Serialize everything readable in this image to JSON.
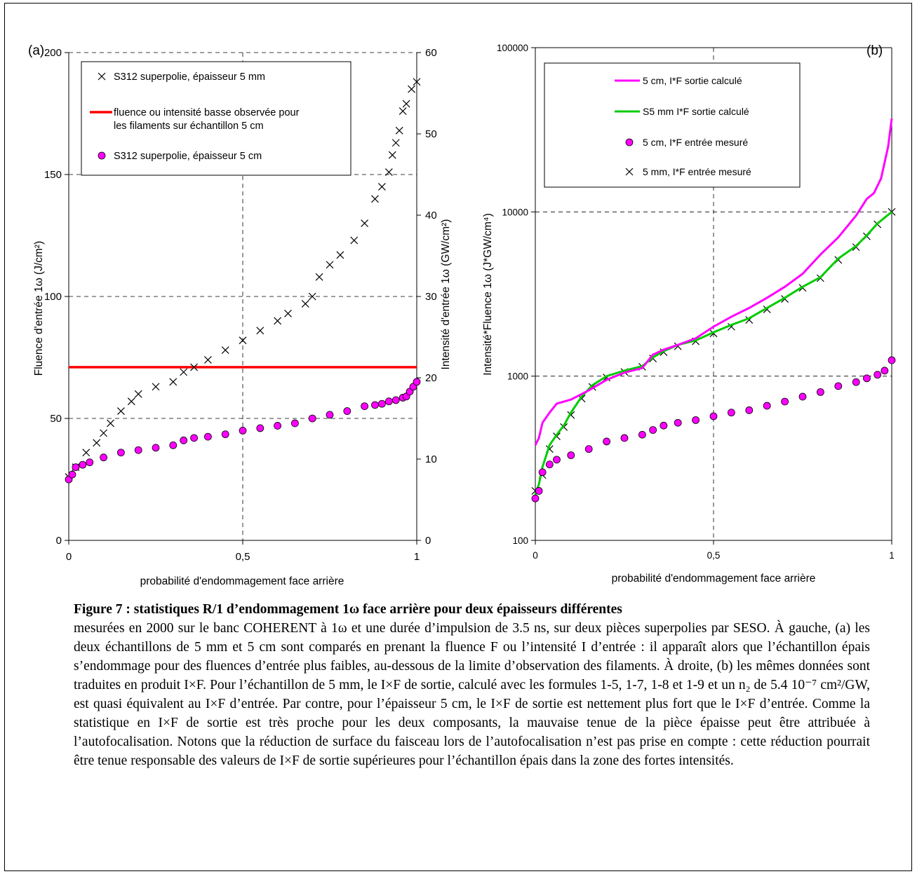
{
  "chart_data": [
    {
      "type": "scatter",
      "panel_label": "(a)",
      "xlabel": "probabilité d'endommagement face arrière",
      "ylabel": "Fluence d'entrée 1ω (J/cm²)",
      "y2label": "Intensité d'entrée 1ω (GW/cm²)",
      "xlim": [
        0,
        1
      ],
      "ylim": [
        0,
        200
      ],
      "y2lim": [
        0,
        60
      ],
      "x_ticks": [
        "0",
        "0,5",
        "1"
      ],
      "y_ticks": [
        "0",
        "50",
        "100",
        "150",
        "200"
      ],
      "y2_ticks": [
        "0",
        "10",
        "20",
        "30",
        "40",
        "50",
        "60"
      ],
      "grid": "dashed",
      "legend_position": "top-left",
      "series": [
        {
          "name": "S312 superpolie, épaisseur 5 mm",
          "marker": "x",
          "color": "#000000",
          "points": [
            [
              0,
              26
            ],
            [
              0.02,
              30
            ],
            [
              0.05,
              36
            ],
            [
              0.08,
              40
            ],
            [
              0.1,
              44
            ],
            [
              0.12,
              48
            ],
            [
              0.15,
              53
            ],
            [
              0.18,
              57
            ],
            [
              0.2,
              60
            ],
            [
              0.25,
              63
            ],
            [
              0.3,
              65
            ],
            [
              0.33,
              69
            ],
            [
              0.36,
              71
            ],
            [
              0.4,
              74
            ],
            [
              0.45,
              78
            ],
            [
              0.5,
              82
            ],
            [
              0.55,
              86
            ],
            [
              0.6,
              90
            ],
            [
              0.63,
              93
            ],
            [
              0.68,
              97
            ],
            [
              0.7,
              100
            ],
            [
              0.72,
              108
            ],
            [
              0.75,
              113
            ],
            [
              0.78,
              117
            ],
            [
              0.82,
              123
            ],
            [
              0.85,
              130
            ],
            [
              0.88,
              140
            ],
            [
              0.9,
              145
            ],
            [
              0.92,
              151
            ],
            [
              0.93,
              158
            ],
            [
              0.94,
              163
            ],
            [
              0.95,
              168
            ],
            [
              0.96,
              176
            ],
            [
              0.97,
              179
            ],
            [
              0.985,
              185
            ],
            [
              1,
              188
            ]
          ]
        },
        {
          "name": "fluence ou intensité basse observée pour les filaments sur échantillon 5 cm",
          "line": true,
          "color": "#ff0000",
          "points": [
            [
              0,
              71
            ],
            [
              1,
              71
            ]
          ]
        },
        {
          "name": "S312 superpolie, épaisseur 5 cm",
          "marker": "circle",
          "color": "#ff00ff",
          "points": [
            [
              0,
              25
            ],
            [
              0.01,
              27
            ],
            [
              0.02,
              30
            ],
            [
              0.04,
              31
            ],
            [
              0.06,
              32
            ],
            [
              0.1,
              34
            ],
            [
              0.15,
              36
            ],
            [
              0.2,
              37
            ],
            [
              0.25,
              38
            ],
            [
              0.3,
              39
            ],
            [
              0.33,
              41
            ],
            [
              0.36,
              42
            ],
            [
              0.4,
              42.5
            ],
            [
              0.45,
              43.5
            ],
            [
              0.5,
              45
            ],
            [
              0.55,
              46
            ],
            [
              0.6,
              47
            ],
            [
              0.65,
              48
            ],
            [
              0.7,
              50
            ],
            [
              0.75,
              51.5
            ],
            [
              0.8,
              53
            ],
            [
              0.85,
              55
            ],
            [
              0.88,
              55.5
            ],
            [
              0.9,
              56
            ],
            [
              0.92,
              57
            ],
            [
              0.94,
              57.5
            ],
            [
              0.96,
              58.5
            ],
            [
              0.97,
              59
            ],
            [
              0.98,
              61
            ],
            [
              0.99,
              63
            ],
            [
              1,
              65
            ]
          ]
        }
      ]
    },
    {
      "type": "line",
      "panel_label": "(b)",
      "xlabel": "probabilité d'endommagement face arrière",
      "ylabel": "Intensité*Fluence 1ω (J*GW/cm⁴)",
      "xlim": [
        0,
        1
      ],
      "ylim": [
        100,
        100000
      ],
      "y_scale": "log",
      "x_ticks": [
        "0",
        "0,5",
        "1"
      ],
      "y_ticks": [
        "100",
        "1000",
        "10000",
        "100000"
      ],
      "grid": "dashed",
      "legend_position": "top-left",
      "series": [
        {
          "name": "5 cm, I*F sortie calculé",
          "line": true,
          "color": "#ff00ff",
          "points": [
            [
              0,
              380
            ],
            [
              0.01,
              420
            ],
            [
              0.02,
              520
            ],
            [
              0.04,
              600
            ],
            [
              0.06,
              680
            ],
            [
              0.1,
              720
            ],
            [
              0.15,
              820
            ],
            [
              0.2,
              950
            ],
            [
              0.25,
              1050
            ],
            [
              0.3,
              1120
            ],
            [
              0.33,
              1350
            ],
            [
              0.36,
              1450
            ],
            [
              0.4,
              1550
            ],
            [
              0.45,
              1700
            ],
            [
              0.5,
              2000
            ],
            [
              0.55,
              2300
            ],
            [
              0.6,
              2600
            ],
            [
              0.65,
              3000
            ],
            [
              0.7,
              3500
            ],
            [
              0.75,
              4200
            ],
            [
              0.8,
              5500
            ],
            [
              0.85,
              7000
            ],
            [
              0.9,
              9500
            ],
            [
              0.93,
              12000
            ],
            [
              0.95,
              13000
            ],
            [
              0.97,
              16000
            ],
            [
              0.99,
              25000
            ],
            [
              1,
              37000
            ]
          ]
        },
        {
          "name": "S5 mm I*F sortie calculé",
          "line": true,
          "color": "#00cc00",
          "points": [
            [
              0,
              190
            ],
            [
              0.01,
              220
            ],
            [
              0.02,
              280
            ],
            [
              0.04,
              380
            ],
            [
              0.06,
              440
            ],
            [
              0.08,
              500
            ],
            [
              0.1,
              600
            ],
            [
              0.13,
              750
            ],
            [
              0.16,
              880
            ],
            [
              0.2,
              1000
            ],
            [
              0.25,
              1080
            ],
            [
              0.3,
              1150
            ],
            [
              0.33,
              1300
            ],
            [
              0.36,
              1420
            ],
            [
              0.4,
              1550
            ],
            [
              0.45,
              1650
            ],
            [
              0.5,
              1850
            ],
            [
              0.55,
              2050
            ],
            [
              0.6,
              2250
            ],
            [
              0.65,
              2600
            ],
            [
              0.7,
              3000
            ],
            [
              0.75,
              3500
            ],
            [
              0.8,
              4000
            ],
            [
              0.85,
              5200
            ],
            [
              0.9,
              6200
            ],
            [
              0.93,
              7200
            ],
            [
              0.96,
              8500
            ],
            [
              1,
              10000
            ]
          ]
        },
        {
          "name": "5 cm, I*F entrée mesuré",
          "marker": "circle",
          "color": "#ff00ff",
          "points": [
            [
              0,
              180
            ],
            [
              0.01,
              200
            ],
            [
              0.02,
              260
            ],
            [
              0.04,
              290
            ],
            [
              0.06,
              310
            ],
            [
              0.1,
              330
            ],
            [
              0.15,
              360
            ],
            [
              0.2,
              400
            ],
            [
              0.25,
              420
            ],
            [
              0.3,
              440
            ],
            [
              0.33,
              470
            ],
            [
              0.36,
              500
            ],
            [
              0.4,
              520
            ],
            [
              0.45,
              540
            ],
            [
              0.5,
              570
            ],
            [
              0.55,
              600
            ],
            [
              0.6,
              620
            ],
            [
              0.65,
              660
            ],
            [
              0.7,
              700
            ],
            [
              0.75,
              750
            ],
            [
              0.8,
              800
            ],
            [
              0.85,
              870
            ],
            [
              0.9,
              920
            ],
            [
              0.93,
              970
            ],
            [
              0.96,
              1020
            ],
            [
              0.98,
              1080
            ],
            [
              1,
              1250
            ]
          ]
        },
        {
          "name": "5 mm, I*F entrée mesuré",
          "marker": "x",
          "color": "#000000",
          "points": [
            [
              0,
              200
            ],
            [
              0.02,
              250
            ],
            [
              0.04,
              360
            ],
            [
              0.06,
              430
            ],
            [
              0.08,
              490
            ],
            [
              0.1,
              580
            ],
            [
              0.13,
              730
            ],
            [
              0.16,
              860
            ],
            [
              0.2,
              980
            ],
            [
              0.25,
              1060
            ],
            [
              0.3,
              1140
            ],
            [
              0.33,
              1280
            ],
            [
              0.36,
              1400
            ],
            [
              0.4,
              1520
            ],
            [
              0.45,
              1630
            ],
            [
              0.5,
              1820
            ],
            [
              0.55,
              2000
            ],
            [
              0.6,
              2200
            ],
            [
              0.65,
              2550
            ],
            [
              0.7,
              2950
            ],
            [
              0.75,
              3450
            ],
            [
              0.8,
              3950
            ],
            [
              0.85,
              5100
            ],
            [
              0.9,
              6100
            ],
            [
              0.93,
              7100
            ],
            [
              0.96,
              8400
            ],
            [
              1,
              10000
            ]
          ]
        }
      ]
    }
  ],
  "caption": {
    "title": "Figure 7 : statistiques R/1 d’endommagement 1ω face arrière pour deux épaisseurs différentes",
    "body": "mesurées en 2000 sur le banc COHERENT à 1ω et une durée d’impulsion de 3.5 ns, sur deux pièces superpolies par SESO. À gauche, (a) les deux échantillons de 5 mm et 5 cm sont comparés en prenant la fluence F ou l’intensité I d’entrée : il apparaît alors que l’échantillon épais s’endommage pour des fluences d’entrée plus faibles, au-dessous de la limite d’observation des filaments. À droite, (b) les mêmes données sont traduites en produit I×F. Pour l’échantillon de 5 mm, le I×F de sortie, calculé avec les formules 1-5, 1-7, 1-8 et 1-9 et un n₂ de 5.4 10⁻⁷ cm²/GW, est quasi équivalent au I×F d’entrée. Par contre, pour l’épaisseur 5 cm, le I×F de sortie est nettement plus fort que le I×F d’entrée. Comme la statistique en I×F de sortie est très proche pour les deux composants, la mauvaise tenue de la pièce épaisse peut être attribuée à l’autofocalisation. Notons que la réduction de surface du faisceau lors de l’autofocalisation n’est pas prise en compte : cette réduction pourrait être tenue responsable des valeurs de I×F de sortie supérieures pour l’échantillon épais dans la zone des fortes intensités."
  }
}
